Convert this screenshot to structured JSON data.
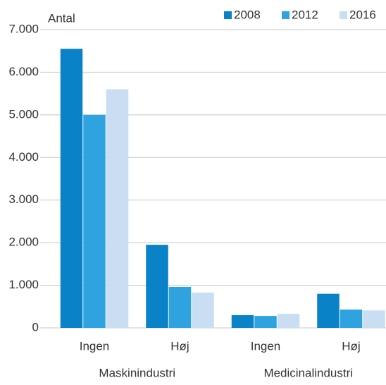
{
  "chart_data": {
    "type": "bar",
    "y_axis_label": "Antal",
    "categories": [
      "Ingen",
      "Høj",
      "Ingen",
      "Høj"
    ],
    "group_labels": [
      "Maskinindustri",
      "Medicinalindustri"
    ],
    "series": [
      {
        "name": "2008",
        "color": "#0a82c8",
        "values": [
          6550,
          1950,
          300,
          800
        ]
      },
      {
        "name": "2012",
        "color": "#2ea3e0",
        "values": [
          5000,
          960,
          280,
          430
        ]
      },
      {
        "name": "2016",
        "color": "#c9def3",
        "values": [
          5600,
          830,
          330,
          410
        ]
      }
    ],
    "ylim": [
      0,
      7000
    ],
    "yticks": [
      0,
      {
        "value": 1000,
        "label": "1.000"
      },
      {
        "value": 2000,
        "label": "2.000"
      },
      {
        "value": 3000,
        "label": "3.000"
      },
      {
        "value": 4000,
        "label": "4.000"
      },
      {
        "value": 5000,
        "label": "5.000"
      },
      {
        "value": 6000,
        "label": "6.000"
      },
      {
        "value": 7000,
        "label": "7.000"
      }
    ],
    "grid": true,
    "legend": "top-right"
  }
}
